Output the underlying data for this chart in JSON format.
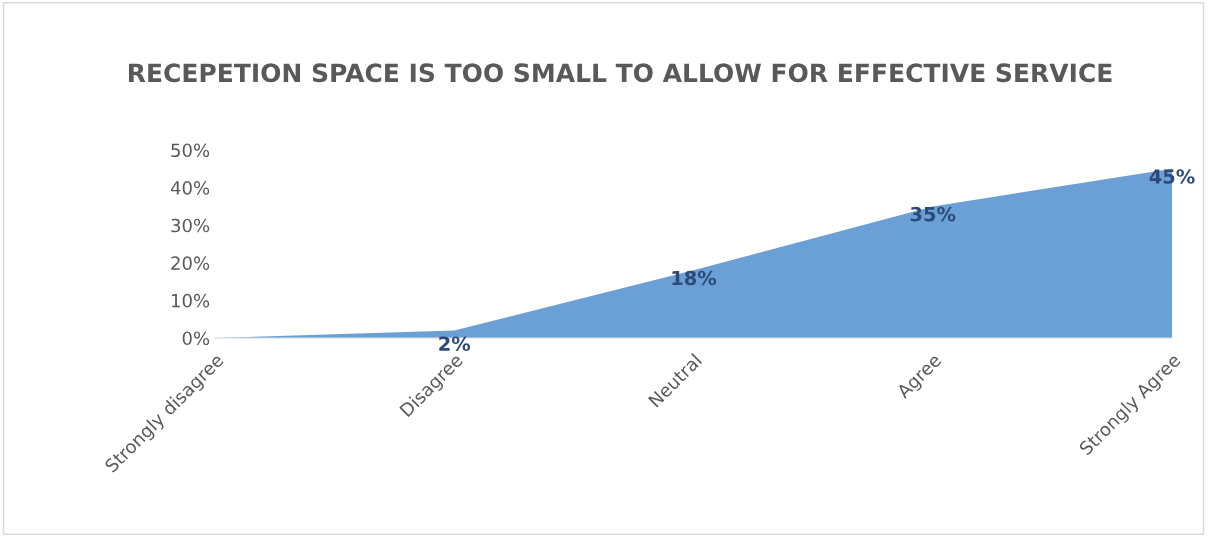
{
  "chart_data": {
    "type": "area",
    "title": "RECEPETION SPACE IS TOO SMALL TO ALLOW FOR EFFECTIVE SERVICE",
    "categories": [
      "Strongly disagree",
      "Disagree",
      "Neutral",
      "Agree",
      "Strongly Agree"
    ],
    "values": [
      0,
      2,
      18,
      35,
      45
    ],
    "color": "#6aa0d6",
    "value_labels": [
      null,
      "2%",
      "18%",
      "35%",
      "45%"
    ],
    "ylim": [
      0,
      50
    ],
    "yticks": [
      {
        "value": 0,
        "label": "0%"
      },
      {
        "value": 10,
        "label": "10%"
      },
      {
        "value": 20,
        "label": "20%"
      },
      {
        "value": 30,
        "label": "30%"
      },
      {
        "value": 40,
        "label": "40%"
      },
      {
        "value": 50,
        "label": "50%"
      }
    ],
    "grid": false,
    "legend": false
  }
}
